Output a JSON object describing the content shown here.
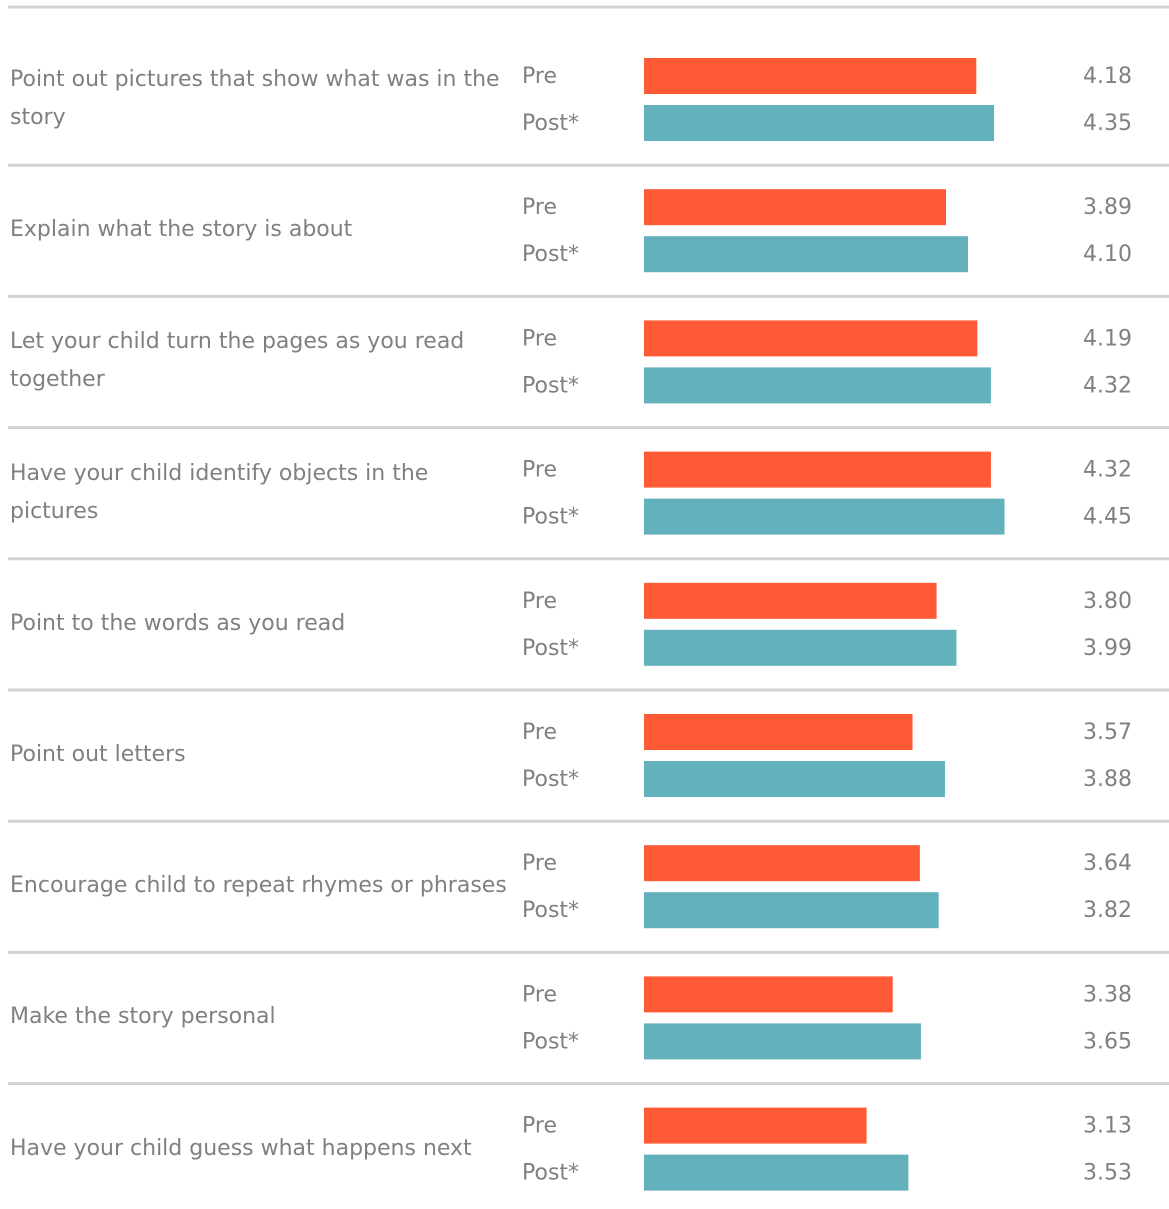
{
  "chart_data": {
    "type": "bar",
    "orientation": "horizontal",
    "categories": [
      "Point out pictures that show what was in the story",
      "Explain what the story is about",
      "Let your child turn the pages as you read together",
      "Have your child identify objects in the pictures",
      "Point to the words as you read",
      "Point out letters",
      "Encourage child to repeat rhymes or phrases",
      "Make the story personal",
      "Have your child guess what happens next"
    ],
    "series": [
      {
        "name": "Pre",
        "color": "#ff5a36",
        "values": [
          4.18,
          3.89,
          4.19,
          4.32,
          3.8,
          3.57,
          3.64,
          3.38,
          3.13
        ],
        "value_labels": [
          "4.18",
          "3.89",
          "4.19",
          "4.32",
          "3.80",
          "3.57",
          "3.64",
          "3.38",
          "3.13"
        ]
      },
      {
        "name": "Post*",
        "color": "#62b1bd",
        "values": [
          4.35,
          4.1,
          4.32,
          4.45,
          3.99,
          3.88,
          3.82,
          3.65,
          3.53
        ],
        "value_labels": [
          "4.35",
          "4.10",
          "4.32",
          "4.45",
          "3.99",
          "3.88",
          "3.82",
          "3.65",
          "3.53"
        ]
      }
    ],
    "xlim": [
      1,
      5
    ]
  }
}
